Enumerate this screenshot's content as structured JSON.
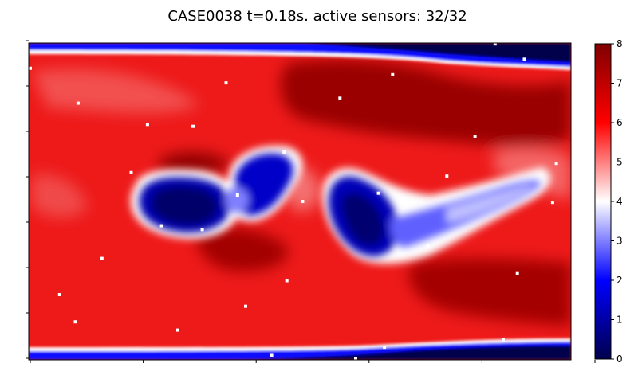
{
  "chart_data": {
    "type": "heatmap",
    "title": "CASE0038 t=0.18s. active sensors: 32/32",
    "xlabel": "",
    "ylabel": "",
    "x_tick_labels_shown": false,
    "y_tick_labels_shown": false,
    "x_tick_count": 6,
    "y_tick_count": 8,
    "colormap": "seismic",
    "colormap_stops": [
      "#00004c",
      "#0000ff",
      "#ffffff",
      "#ff0000",
      "#800000"
    ],
    "colorbar": {
      "range": [
        0,
        8
      ],
      "ticks": [
        "0",
        "1",
        "2",
        "3",
        "4",
        "5",
        "6",
        "7",
        "8"
      ]
    },
    "sensor_marker_color": "#ffffff",
    "active_sensors": 32,
    "total_sensors": 32,
    "sensors": [
      [
        0.003,
        0.08
      ],
      [
        0.091,
        0.19
      ],
      [
        0.219,
        0.257
      ],
      [
        0.189,
        0.409
      ],
      [
        0.245,
        0.577
      ],
      [
        0.135,
        0.68
      ],
      [
        0.057,
        0.794
      ],
      [
        0.086,
        0.88
      ],
      [
        0.275,
        0.906
      ],
      [
        0.364,
        0.126
      ],
      [
        0.303,
        0.263
      ],
      [
        0.32,
        0.589
      ],
      [
        0.471,
        0.344
      ],
      [
        0.4,
        0.831
      ],
      [
        0.476,
        0.75
      ],
      [
        0.574,
        0.174
      ],
      [
        0.671,
        0.1
      ],
      [
        0.645,
        0.474
      ],
      [
        0.736,
        0.641
      ],
      [
        0.771,
        0.42
      ],
      [
        0.823,
        0.294
      ],
      [
        0.914,
        0.051
      ],
      [
        0.973,
        0.38
      ],
      [
        0.966,
        0.503
      ],
      [
        0.901,
        0.728
      ],
      [
        0.875,
        0.936
      ],
      [
        0.656,
        0.96
      ],
      [
        0.603,
        0.997
      ],
      [
        0.448,
        0.986
      ],
      [
        0.505,
        0.5
      ],
      [
        0.385,
        0.48
      ],
      [
        0.86,
        0.003
      ]
    ]
  }
}
